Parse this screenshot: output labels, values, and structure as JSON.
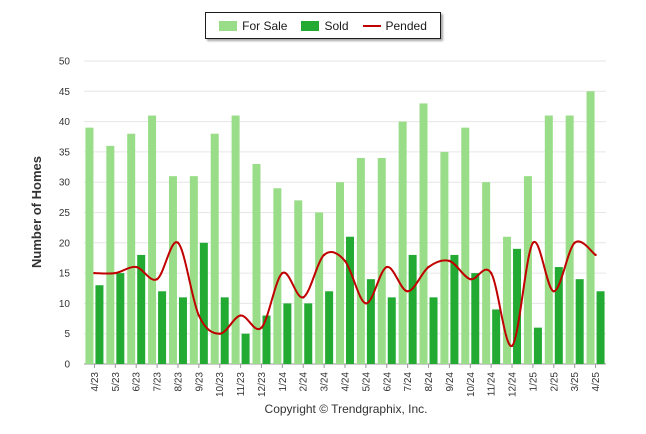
{
  "chart_data": {
    "type": "bar",
    "categories": [
      "4/23",
      "5/23",
      "6/23",
      "7/23",
      "8/23",
      "9/23",
      "10/23",
      "11/23",
      "12/23",
      "1/24",
      "2/24",
      "3/24",
      "4/24",
      "5/24",
      "6/24",
      "7/24",
      "8/24",
      "9/24",
      "10/24",
      "11/24",
      "12/24",
      "1/25",
      "2/25",
      "3/25",
      "4/25"
    ],
    "series": [
      {
        "name": "For Sale",
        "kind": "bar",
        "color": "#99dd88",
        "values": [
          39,
          36,
          38,
          41,
          31,
          31,
          38,
          41,
          33,
          29,
          27,
          25,
          30,
          34,
          34,
          40,
          43,
          35,
          39,
          30,
          21,
          31,
          41,
          41,
          45
        ]
      },
      {
        "name": "Sold",
        "kind": "bar",
        "color": "#22aa33",
        "values": [
          13,
          15,
          18,
          12,
          11,
          20,
          11,
          5,
          8,
          10,
          10,
          12,
          21,
          14,
          11,
          18,
          11,
          18,
          15,
          9,
          19,
          6,
          16,
          14,
          12
        ]
      },
      {
        "name": "Pended",
        "kind": "line",
        "color": "#c00000",
        "values": [
          15,
          15,
          16,
          14,
          20,
          8,
          5,
          8,
          6,
          15,
          11,
          18,
          17,
          10,
          16,
          12,
          16,
          17,
          14,
          15,
          3,
          20,
          12,
          20,
          18
        ]
      }
    ],
    "ylabel": "Number of Homes",
    "xlabel": "",
    "ylim": [
      0,
      50
    ],
    "yticks": [
      0,
      5,
      10,
      15,
      20,
      25,
      30,
      35,
      40,
      45,
      50
    ],
    "grid": true,
    "legend": "top-center"
  },
  "credit": "Copyright © Trendgraphix, Inc."
}
